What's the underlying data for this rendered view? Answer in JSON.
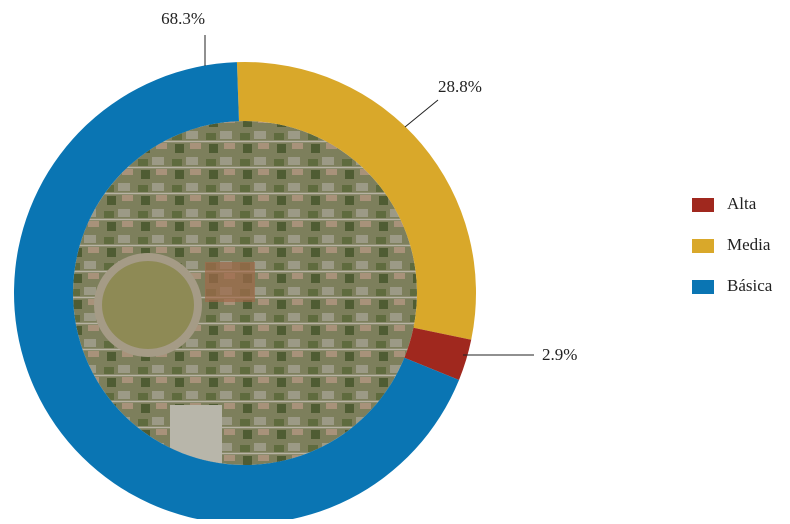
{
  "chart_data": {
    "type": "donut",
    "categories": [
      "Alta",
      "Media",
      "Básica"
    ],
    "values": [
      2.9,
      28.8,
      68.3
    ],
    "value_labels": [
      "2.9%",
      "28.8%",
      "68.3%"
    ],
    "colors": [
      "#a0281e",
      "#d9a82a",
      "#0a75b3"
    ],
    "legend": "right"
  }
}
